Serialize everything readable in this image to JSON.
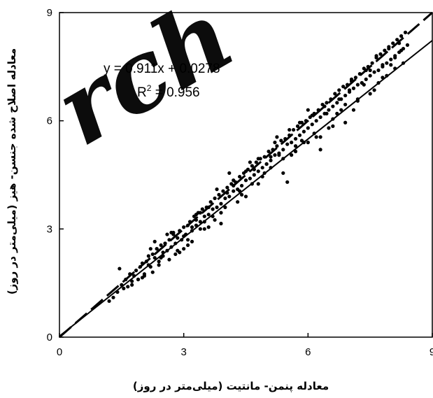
{
  "chart_data": {
    "type": "scatter",
    "title": "",
    "xlabel": "معادله پنمن- مانتیت (میلی‌متر در روز)",
    "ylabel": "معادله اصلاح شده جنسن- هیز (میلی‌متر در روز)",
    "xlim": [
      0,
      9
    ],
    "ylim": [
      0,
      9
    ],
    "xticks": [
      "0",
      "3",
      "6",
      "9"
    ],
    "yticks": [
      "0",
      "3",
      "6",
      "9"
    ],
    "grid": false,
    "legend": "none",
    "regression": {
      "slope": 0.911,
      "intercept": 0.0278
    },
    "annotation": {
      "equation": "y = 0.911x + 0.0278",
      "r2_prefix": "R",
      "r2_exp": "2",
      "r2_suffix": " = 0.956"
    },
    "lines": [
      {
        "style": "solid",
        "x": [
          0,
          9
        ],
        "y": [
          0.0278,
          8.227
        ]
      },
      {
        "style": "dashed",
        "x": [
          0,
          9
        ],
        "y": [
          0,
          9
        ]
      }
    ],
    "series": [
      {
        "x": [
          1.2,
          1.3,
          1.4,
          1.5,
          1.55,
          1.6,
          1.65,
          1.7,
          1.75,
          1.8,
          1.85,
          1.9,
          1.95,
          2.0,
          2.05,
          2.1,
          2.15,
          2.2,
          2.25,
          2.3,
          2.35,
          2.4,
          2.45,
          2.5,
          2.55,
          2.6,
          2.65,
          2.7,
          2.75,
          2.8,
          2.85,
          2.9,
          2.95,
          3.0,
          3.05,
          3.1,
          3.15,
          3.2,
          3.25,
          3.3,
          3.35,
          3.4,
          3.45,
          3.5,
          3.55,
          3.6,
          3.65,
          3.7,
          3.75,
          3.8,
          3.85,
          3.9,
          3.95,
          4.0,
          4.05,
          4.1,
          4.15,
          4.2,
          4.25,
          4.3,
          4.35,
          4.4,
          4.45,
          4.5,
          4.55,
          4.6,
          4.65,
          4.7,
          4.75,
          4.8,
          4.85,
          4.9,
          4.95,
          5.0,
          5.05,
          5.1,
          5.15,
          5.2,
          5.25,
          5.3,
          5.35,
          5.4,
          5.45,
          5.5,
          5.55,
          5.6,
          5.65,
          5.7,
          5.75,
          5.8,
          5.85,
          5.9,
          5.95,
          6.0,
          6.05,
          6.1,
          6.15,
          6.2,
          6.25,
          6.3,
          6.35,
          6.4,
          6.45,
          6.5,
          6.55,
          6.6,
          6.65,
          6.7,
          6.75,
          6.8,
          6.85,
          6.9,
          6.95,
          7.0,
          7.05,
          7.1,
          7.15,
          7.2,
          7.25,
          7.3,
          7.35,
          7.4,
          7.45,
          7.5,
          7.55,
          7.6,
          7.65,
          7.7,
          7.75,
          7.8,
          7.85,
          7.9,
          7.95,
          8.0,
          8.05,
          8.1,
          8.15,
          8.2,
          8.25,
          8.3,
          8.35,
          8.4,
          1.45,
          1.75,
          1.9,
          2.05,
          2.15,
          2.25,
          2.35,
          2.45,
          2.55,
          2.65,
          2.75,
          2.85,
          3.0,
          3.1,
          3.2,
          3.3,
          3.4,
          3.5,
          3.6,
          3.75,
          3.9,
          4.05,
          4.2,
          4.35,
          4.5,
          4.65,
          4.8,
          4.95,
          5.1,
          5.25,
          5.4,
          5.55,
          5.7,
          5.85,
          6.0,
          6.15,
          6.3,
          6.45,
          6.6,
          6.75,
          6.9,
          7.05,
          7.2,
          7.35,
          7.5,
          7.65,
          7.8,
          7.95,
          8.1,
          8.25,
          2.0,
          2.2,
          2.4,
          2.6,
          2.8,
          3.0,
          3.2,
          3.4,
          3.6,
          3.8,
          4.0,
          4.2,
          4.4,
          4.6,
          4.8,
          5.0,
          5.2,
          5.4,
          5.6,
          5.8,
          6.0,
          6.2,
          6.4,
          6.6,
          6.8,
          7.0,
          7.2,
          7.4,
          7.6,
          7.8,
          8.0,
          8.2,
          2.3,
          2.5,
          2.7,
          2.9,
          3.1,
          3.3,
          3.5,
          3.7,
          3.9,
          4.1,
          4.3,
          4.5,
          4.7,
          4.9,
          5.1,
          5.3,
          5.5,
          5.7,
          5.9,
          6.1,
          6.3,
          6.5,
          6.7,
          6.9,
          7.1,
          7.3,
          7.5,
          7.7,
          7.9,
          8.1,
          8.3
        ],
        "y": [
          1.0,
          1.1,
          1.25,
          1.45,
          1.35,
          1.6,
          1.4,
          1.75,
          1.55,
          1.7,
          1.85,
          1.6,
          1.95,
          2.05,
          1.75,
          2.1,
          2.25,
          1.95,
          2.3,
          2.2,
          2.45,
          2.1,
          2.55,
          2.35,
          2.6,
          2.4,
          2.7,
          2.5,
          2.85,
          2.6,
          2.75,
          2.95,
          2.7,
          3.05,
          2.85,
          3.1,
          3.2,
          2.95,
          3.35,
          3.1,
          3.45,
          3.2,
          3.55,
          3.35,
          3.6,
          3.4,
          3.75,
          3.55,
          3.85,
          3.6,
          3.95,
          3.7,
          4.05,
          3.85,
          4.15,
          3.9,
          4.25,
          4.05,
          4.3,
          4.1,
          4.45,
          4.2,
          4.55,
          4.35,
          4.65,
          4.4,
          4.75,
          4.5,
          4.85,
          4.6,
          4.95,
          4.7,
          5.0,
          4.8,
          5.15,
          4.9,
          5.2,
          5.05,
          5.3,
          5.1,
          5.45,
          5.2,
          5.5,
          5.35,
          5.6,
          5.4,
          5.75,
          5.5,
          5.85,
          5.6,
          5.95,
          5.7,
          6.0,
          5.8,
          6.1,
          5.9,
          6.2,
          6.0,
          6.3,
          6.1,
          6.45,
          6.2,
          6.5,
          6.3,
          6.6,
          6.4,
          6.75,
          6.5,
          6.85,
          6.6,
          6.95,
          6.7,
          7.0,
          6.8,
          7.1,
          6.9,
          7.2,
          7.0,
          7.3,
          7.05,
          7.45,
          7.15,
          7.5,
          7.25,
          7.6,
          7.35,
          7.75,
          7.4,
          7.85,
          7.5,
          7.95,
          7.6,
          8.05,
          7.7,
          8.15,
          7.8,
          8.25,
          7.9,
          8.35,
          8.0,
          8.45,
          8.1,
          1.9,
          1.45,
          1.6,
          1.7,
          2.0,
          1.8,
          2.45,
          2.2,
          2.6,
          2.15,
          2.9,
          2.4,
          2.45,
          2.7,
          3.05,
          3.25,
          3.0,
          3.2,
          3.6,
          3.25,
          3.45,
          4.0,
          4.35,
          4.05,
          4.6,
          4.25,
          4.95,
          4.55,
          5.0,
          5.55,
          4.95,
          5.75,
          5.3,
          5.45,
          6.3,
          5.65,
          5.55,
          6.2,
          6.05,
          6.6,
          6.45,
          7.15,
          6.55,
          7.0,
          7.4,
          7.8,
          7.2,
          8.0,
          7.75,
          7.95,
          1.65,
          2.45,
          2.0,
          2.85,
          2.3,
          2.8,
          2.65,
          3.45,
          3.05,
          4.1,
          3.6,
          4.2,
          3.95,
          4.85,
          4.25,
          4.8,
          5.4,
          4.55,
          5.05,
          5.95,
          5.4,
          5.55,
          6.4,
          5.85,
          6.3,
          6.85,
          6.6,
          7.4,
          6.85,
          7.55,
          7.55,
          8.15,
          2.65,
          2.25,
          2.9,
          2.35,
          2.55,
          3.4,
          3.0,
          3.35,
          3.15,
          4.55,
          3.75,
          3.9,
          4.65,
          4.45,
          4.7,
          5.05,
          4.3,
          5.15,
          5.4,
          6.15,
          5.2,
          5.8,
          6.2,
          5.95,
          6.3,
          7.05,
          6.75,
          7.05,
          7.25,
          7.45,
          7.6
        ]
      }
    ]
  }
}
